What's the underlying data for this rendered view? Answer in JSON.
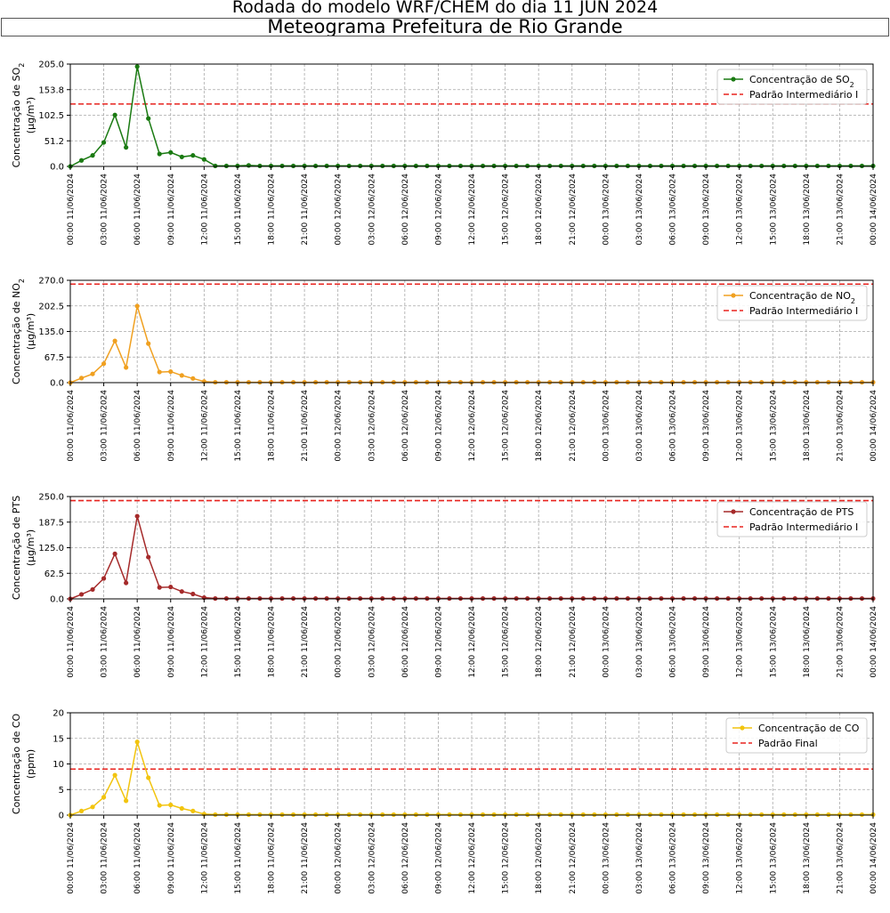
{
  "header": {
    "suptitle": "Rodada do modelo WRF/CHEM do dia 11 JUN 2024",
    "title": "Meteograma Prefeitura de Rio Grande"
  },
  "chart_data": [
    {
      "type": "line",
      "ylabel": "Concentração de SO₂",
      "yunit": "(μg/m³)",
      "ylim": [
        0,
        205
      ],
      "yticks": [
        "0.0",
        "51.2",
        "102.5",
        "153.8",
        "205.0"
      ],
      "color": "#1a7a12",
      "series_name": "Concentração de SO₂",
      "values": [
        0,
        12,
        22,
        48,
        103,
        38,
        200,
        96,
        25,
        28,
        19,
        22,
        14,
        1,
        1,
        1,
        2,
        1,
        1,
        1,
        1,
        1,
        1,
        1,
        1,
        1,
        1,
        1,
        1,
        1,
        1,
        1,
        1,
        1,
        1,
        1,
        1,
        1,
        1,
        1,
        1,
        1,
        1,
        1,
        1,
        1,
        1,
        1,
        1,
        1,
        1,
        1,
        1,
        1,
        1,
        1,
        1,
        1,
        1,
        1,
        1,
        1,
        1,
        1,
        1,
        1,
        1,
        1,
        1,
        1,
        1,
        1,
        1
      ],
      "reference": {
        "name": "Padrão Intermediário I",
        "value": 125,
        "color": "#e8231f"
      },
      "grid": true,
      "legend": "top-right"
    },
    {
      "type": "line",
      "ylabel": "Concentração de NO₂",
      "yunit": "(μg/m³)",
      "ylim": [
        0,
        270
      ],
      "yticks": [
        "0.0",
        "67.5",
        "135.0",
        "202.5",
        "270.0"
      ],
      "color": "#f0a020",
      "series_name": "Concentração de NO₂",
      "values": [
        0,
        12,
        23,
        50,
        110,
        40,
        202,
        103,
        28,
        29,
        19,
        11,
        3,
        1,
        1,
        1,
        1,
        1,
        1,
        1,
        1,
        1,
        1,
        1,
        1,
        1,
        1,
        1,
        1,
        1,
        1,
        1,
        1,
        1,
        1,
        1,
        1,
        1,
        1,
        1,
        1,
        1,
        1,
        1,
        1,
        1,
        1,
        1,
        1,
        1,
        1,
        1,
        1,
        1,
        1,
        1,
        1,
        1,
        1,
        1,
        1,
        1,
        1,
        1,
        1,
        1,
        1,
        1,
        1,
        1,
        1,
        1,
        1
      ],
      "reference": {
        "name": "Padrão Intermediário I",
        "value": 260,
        "color": "#e8231f"
      },
      "grid": true,
      "legend": "top-right"
    },
    {
      "type": "line",
      "ylabel": "Concentração de PTS",
      "yunit": "(μg/m³)",
      "ylim": [
        0,
        250
      ],
      "yticks": [
        "0.0",
        "62.5",
        "125.0",
        "187.5",
        "250.0"
      ],
      "color": "#a52a2a",
      "series_name": "Concentração de PTS",
      "values": [
        0,
        11,
        23,
        50,
        110,
        39,
        202,
        102,
        28,
        29,
        18,
        12,
        3,
        1,
        1,
        1,
        1,
        1,
        1,
        1,
        1,
        1,
        1,
        1,
        1,
        1,
        1,
        1,
        1,
        1,
        1,
        1,
        1,
        1,
        1,
        1,
        1,
        1,
        1,
        1,
        1,
        1,
        1,
        1,
        1,
        1,
        1,
        1,
        1,
        1,
        1,
        1,
        1,
        1,
        1,
        1,
        1,
        1,
        1,
        1,
        1,
        1,
        1,
        1,
        1,
        1,
        1,
        1,
        1,
        1,
        1,
        1,
        1
      ],
      "reference": {
        "name": "Padrão Intermediário I",
        "value": 240,
        "color": "#e8231f"
      },
      "grid": true,
      "legend": "top-right"
    },
    {
      "type": "line",
      "ylabel": "Concentração de CO",
      "yunit": "(ppm)",
      "ylim": [
        0,
        20
      ],
      "yticks": [
        "0",
        "5",
        "10",
        "15",
        "20"
      ],
      "color": "#f2c40e",
      "series_name": "Concentração de CO",
      "values": [
        0,
        0.8,
        1.6,
        3.5,
        7.8,
        2.8,
        14.3,
        7.3,
        1.9,
        2.0,
        1.3,
        0.8,
        0.2,
        0.1,
        0.1,
        0.1,
        0.1,
        0.1,
        0.1,
        0.1,
        0.1,
        0.1,
        0.1,
        0.1,
        0.1,
        0.1,
        0.1,
        0.1,
        0.1,
        0.1,
        0.1,
        0.1,
        0.1,
        0.1,
        0.1,
        0.1,
        0.1,
        0.1,
        0.1,
        0.1,
        0.1,
        0.1,
        0.1,
        0.1,
        0.1,
        0.1,
        0.1,
        0.1,
        0.1,
        0.1,
        0.1,
        0.1,
        0.1,
        0.1,
        0.1,
        0.1,
        0.1,
        0.1,
        0.1,
        0.1,
        0.1,
        0.1,
        0.1,
        0.1,
        0.1,
        0.1,
        0.1,
        0.1,
        0.1,
        0.1,
        0.1,
        0.1,
        0.1
      ],
      "reference": {
        "name": "Padrão Final",
        "value": 9,
        "color": "#e8231f"
      },
      "grid": true,
      "legend": "top-right"
    }
  ],
  "x_axis": {
    "ticks": [
      "00:00 11/06/2024",
      "03:00 11/06/2024",
      "06:00 11/06/2024",
      "09:00 11/06/2024",
      "12:00 11/06/2024",
      "15:00 11/06/2024",
      "18:00 11/06/2024",
      "21:00 11/06/2024",
      "00:00 12/06/2024",
      "03:00 12/06/2024",
      "06:00 12/06/2024",
      "09:00 12/06/2024",
      "12:00 12/06/2024",
      "15:00 12/06/2024",
      "18:00 12/06/2024",
      "21:00 12/06/2024",
      "00:00 13/06/2024",
      "03:00 13/06/2024",
      "06:00 13/06/2024",
      "09:00 13/06/2024",
      "12:00 13/06/2024",
      "15:00 13/06/2024",
      "18:00 13/06/2024",
      "21:00 13/06/2024",
      "00:00 14/06/2024"
    ],
    "hours_total": 72,
    "tick_step_hours": 3
  }
}
